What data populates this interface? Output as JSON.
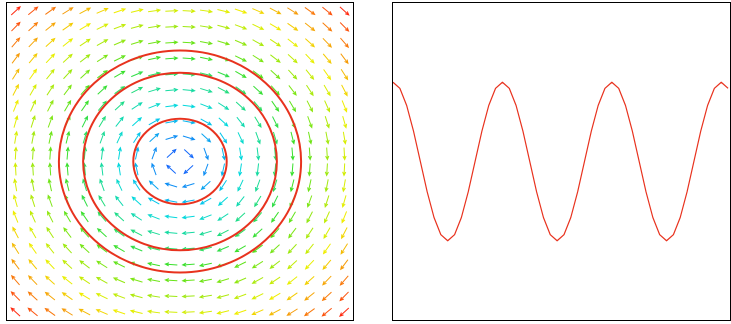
{
  "chart_data": [
    {
      "type": "quiver",
      "xlim": [
        -1,
        1
      ],
      "ylim": [
        -1,
        1
      ],
      "x": [
        -0.95,
        -0.85,
        -0.75,
        -0.65,
        -0.55,
        -0.45,
        -0.35,
        -0.25,
        -0.15,
        -0.05,
        0.05,
        0.15,
        0.25,
        0.35,
        0.45,
        0.55,
        0.65,
        0.75,
        0.85,
        0.95
      ],
      "y": [
        0.95,
        0.85,
        0.75,
        0.65,
        0.55,
        0.45,
        0.35,
        0.25,
        0.15,
        0.05,
        -0.05,
        -0.15,
        -0.25,
        -0.35,
        -0.45,
        -0.55,
        -0.65,
        -0.75,
        -0.85,
        -0.95
      ],
      "u": [
        [
          0.95,
          0.95,
          0.95,
          0.95,
          0.95,
          0.95,
          0.95,
          0.95,
          0.95,
          0.95,
          0.95,
          0.95,
          0.95,
          0.95,
          0.95,
          0.95,
          0.95,
          0.95,
          0.95,
          0.95
        ],
        [
          0.85,
          0.85,
          0.85,
          0.85,
          0.85,
          0.85,
          0.85,
          0.85,
          0.85,
          0.85,
          0.85,
          0.85,
          0.85,
          0.85,
          0.85,
          0.85,
          0.85,
          0.85,
          0.85,
          0.85
        ],
        [
          0.75,
          0.75,
          0.75,
          0.75,
          0.75,
          0.75,
          0.75,
          0.75,
          0.75,
          0.75,
          0.75,
          0.75,
          0.75,
          0.75,
          0.75,
          0.75,
          0.75,
          0.75,
          0.75,
          0.75
        ],
        [
          0.65,
          0.65,
          0.65,
          0.65,
          0.65,
          0.65,
          0.65,
          0.65,
          0.65,
          0.65,
          0.65,
          0.65,
          0.65,
          0.65,
          0.65,
          0.65,
          0.65,
          0.65,
          0.65,
          0.65
        ],
        [
          0.55,
          0.55,
          0.55,
          0.55,
          0.55,
          0.55,
          0.55,
          0.55,
          0.55,
          0.55,
          0.55,
          0.55,
          0.55,
          0.55,
          0.55,
          0.55,
          0.55,
          0.55,
          0.55,
          0.55
        ],
        [
          0.45,
          0.45,
          0.45,
          0.45,
          0.45,
          0.45,
          0.45,
          0.45,
          0.45,
          0.45,
          0.45,
          0.45,
          0.45,
          0.45,
          0.45,
          0.45,
          0.45,
          0.45,
          0.45,
          0.45
        ],
        [
          0.35,
          0.35,
          0.35,
          0.35,
          0.35,
          0.35,
          0.35,
          0.35,
          0.35,
          0.35,
          0.35,
          0.35,
          0.35,
          0.35,
          0.35,
          0.35,
          0.35,
          0.35,
          0.35,
          0.35
        ],
        [
          0.25,
          0.25,
          0.25,
          0.25,
          0.25,
          0.25,
          0.25,
          0.25,
          0.25,
          0.25,
          0.25,
          0.25,
          0.25,
          0.25,
          0.25,
          0.25,
          0.25,
          0.25,
          0.25,
          0.25
        ],
        [
          0.15,
          0.15,
          0.15,
          0.15,
          0.15,
          0.15,
          0.15,
          0.15,
          0.15,
          0.15,
          0.15,
          0.15,
          0.15,
          0.15,
          0.15,
          0.15,
          0.15,
          0.15,
          0.15,
          0.15
        ],
        [
          0.05,
          0.05,
          0.05,
          0.05,
          0.05,
          0.05,
          0.05,
          0.05,
          0.05,
          0.05,
          0.05,
          0.05,
          0.05,
          0.05,
          0.05,
          0.05,
          0.05,
          0.05,
          0.05,
          0.05
        ],
        [
          -0.05,
          -0.05,
          -0.05,
          -0.05,
          -0.05,
          -0.05,
          -0.05,
          -0.05,
          -0.05,
          -0.05,
          -0.05,
          -0.05,
          -0.05,
          -0.05,
          -0.05,
          -0.05,
          -0.05,
          -0.05,
          -0.05,
          -0.05
        ],
        [
          -0.15,
          -0.15,
          -0.15,
          -0.15,
          -0.15,
          -0.15,
          -0.15,
          -0.15,
          -0.15,
          -0.15,
          -0.15,
          -0.15,
          -0.15,
          -0.15,
          -0.15,
          -0.15,
          -0.15,
          -0.15,
          -0.15,
          -0.15
        ],
        [
          -0.25,
          -0.25,
          -0.25,
          -0.25,
          -0.25,
          -0.25,
          -0.25,
          -0.25,
          -0.25,
          -0.25,
          -0.25,
          -0.25,
          -0.25,
          -0.25,
          -0.25,
          -0.25,
          -0.25,
          -0.25,
          -0.25,
          -0.25
        ],
        [
          -0.35,
          -0.35,
          -0.35,
          -0.35,
          -0.35,
          -0.35,
          -0.35,
          -0.35,
          -0.35,
          -0.35,
          -0.35,
          -0.35,
          -0.35,
          -0.35,
          -0.35,
          -0.35,
          -0.35,
          -0.35,
          -0.35,
          -0.35
        ],
        [
          -0.45,
          -0.45,
          -0.45,
          -0.45,
          -0.45,
          -0.45,
          -0.45,
          -0.45,
          -0.45,
          -0.45,
          -0.45,
          -0.45,
          -0.45,
          -0.45,
          -0.45,
          -0.45,
          -0.45,
          -0.45,
          -0.45,
          -0.45
        ],
        [
          -0.55,
          -0.55,
          -0.55,
          -0.55,
          -0.55,
          -0.55,
          -0.55,
          -0.55,
          -0.55,
          -0.55,
          -0.55,
          -0.55,
          -0.55,
          -0.55,
          -0.55,
          -0.55,
          -0.55,
          -0.55,
          -0.55,
          -0.55
        ],
        [
          -0.65,
          -0.65,
          -0.65,
          -0.65,
          -0.65,
          -0.65,
          -0.65,
          -0.65,
          -0.65,
          -0.65,
          -0.65,
          -0.65,
          -0.65,
          -0.65,
          -0.65,
          -0.65,
          -0.65,
          -0.65,
          -0.65,
          -0.65
        ],
        [
          -0.75,
          -0.75,
          -0.75,
          -0.75,
          -0.75,
          -0.75,
          -0.75,
          -0.75,
          -0.75,
          -0.75,
          -0.75,
          -0.75,
          -0.75,
          -0.75,
          -0.75,
          -0.75,
          -0.75,
          -0.75,
          -0.75,
          -0.75
        ],
        [
          -0.85,
          -0.85,
          -0.85,
          -0.85,
          -0.85,
          -0.85,
          -0.85,
          -0.85,
          -0.85,
          -0.85,
          -0.85,
          -0.85,
          -0.85,
          -0.85,
          -0.85,
          -0.85,
          -0.85,
          -0.85,
          -0.85,
          -0.85
        ],
        [
          -0.95,
          -0.95,
          -0.95,
          -0.95,
          -0.95,
          -0.95,
          -0.95,
          -0.95,
          -0.95,
          -0.95,
          -0.95,
          -0.95,
          -0.95,
          -0.95,
          -0.95,
          -0.95,
          -0.95,
          -0.95,
          -0.95,
          -0.95
        ]
      ],
      "v": [
        [
          0.95,
          0.85,
          0.75,
          0.65,
          0.55,
          0.45,
          0.35,
          0.25,
          0.15,
          0.05,
          -0.05,
          -0.15,
          -0.25,
          -0.35,
          -0.45,
          -0.55,
          -0.65,
          -0.75,
          -0.85,
          -0.95
        ],
        [
          0.95,
          0.85,
          0.75,
          0.65,
          0.55,
          0.45,
          0.35,
          0.25,
          0.15,
          0.05,
          -0.05,
          -0.15,
          -0.25,
          -0.35,
          -0.45,
          -0.55,
          -0.65,
          -0.75,
          -0.85,
          -0.95
        ],
        [
          0.95,
          0.85,
          0.75,
          0.65,
          0.55,
          0.45,
          0.35,
          0.25,
          0.15,
          0.05,
          -0.05,
          -0.15,
          -0.25,
          -0.35,
          -0.45,
          -0.55,
          -0.65,
          -0.75,
          -0.85,
          -0.95
        ],
        [
          0.95,
          0.85,
          0.75,
          0.65,
          0.55,
          0.45,
          0.35,
          0.25,
          0.15,
          0.05,
          -0.05,
          -0.15,
          -0.25,
          -0.35,
          -0.45,
          -0.55,
          -0.65,
          -0.75,
          -0.85,
          -0.95
        ],
        [
          0.95,
          0.85,
          0.75,
          0.65,
          0.55,
          0.45,
          0.35,
          0.25,
          0.15,
          0.05,
          -0.05,
          -0.15,
          -0.25,
          -0.35,
          -0.45,
          -0.55,
          -0.65,
          -0.75,
          -0.85,
          -0.95
        ],
        [
          0.95,
          0.85,
          0.75,
          0.65,
          0.55,
          0.45,
          0.35,
          0.25,
          0.15,
          0.05,
          -0.05,
          -0.15,
          -0.25,
          -0.35,
          -0.45,
          -0.55,
          -0.65,
          -0.75,
          -0.85,
          -0.95
        ],
        [
          0.95,
          0.85,
          0.75,
          0.65,
          0.55,
          0.45,
          0.35,
          0.25,
          0.15,
          0.05,
          -0.05,
          -0.15,
          -0.25,
          -0.35,
          -0.45,
          -0.55,
          -0.65,
          -0.75,
          -0.85,
          -0.95
        ],
        [
          0.95,
          0.85,
          0.75,
          0.65,
          0.55,
          0.45,
          0.35,
          0.25,
          0.15,
          0.05,
          -0.05,
          -0.15,
          -0.25,
          -0.35,
          -0.45,
          -0.55,
          -0.65,
          -0.75,
          -0.85,
          -0.95
        ],
        [
          0.95,
          0.85,
          0.75,
          0.65,
          0.55,
          0.45,
          0.35,
          0.25,
          0.15,
          0.05,
          -0.05,
          -0.15,
          -0.25,
          -0.35,
          -0.45,
          -0.55,
          -0.65,
          -0.75,
          -0.85,
          -0.95
        ],
        [
          0.95,
          0.85,
          0.75,
          0.65,
          0.55,
          0.45,
          0.35,
          0.25,
          0.15,
          0.05,
          -0.05,
          -0.15,
          -0.25,
          -0.35,
          -0.45,
          -0.55,
          -0.65,
          -0.75,
          -0.85,
          -0.95
        ],
        [
          0.95,
          0.85,
          0.75,
          0.65,
          0.55,
          0.45,
          0.35,
          0.25,
          0.15,
          0.05,
          -0.05,
          -0.15,
          -0.25,
          -0.35,
          -0.45,
          -0.55,
          -0.65,
          -0.75,
          -0.85,
          -0.95
        ],
        [
          0.95,
          0.85,
          0.75,
          0.65,
          0.55,
          0.45,
          0.35,
          0.25,
          0.15,
          0.05,
          -0.05,
          -0.15,
          -0.25,
          -0.35,
          -0.45,
          -0.55,
          -0.65,
          -0.75,
          -0.85,
          -0.95
        ],
        [
          0.95,
          0.85,
          0.75,
          0.65,
          0.55,
          0.45,
          0.35,
          0.25,
          0.15,
          0.05,
          -0.05,
          -0.15,
          -0.25,
          -0.35,
          -0.45,
          -0.55,
          -0.65,
          -0.75,
          -0.85,
          -0.95
        ],
        [
          0.95,
          0.85,
          0.75,
          0.65,
          0.55,
          0.45,
          0.35,
          0.25,
          0.15,
          0.05,
          -0.05,
          -0.15,
          -0.25,
          -0.35,
          -0.45,
          -0.55,
          -0.65,
          -0.75,
          -0.85,
          -0.95
        ],
        [
          0.95,
          0.85,
          0.75,
          0.65,
          0.55,
          0.45,
          0.35,
          0.25,
          0.15,
          0.05,
          -0.05,
          -0.15,
          -0.25,
          -0.35,
          -0.45,
          -0.55,
          -0.65,
          -0.75,
          -0.85,
          -0.95
        ],
        [
          0.95,
          0.85,
          0.75,
          0.65,
          0.55,
          0.45,
          0.35,
          0.25,
          0.15,
          0.05,
          -0.05,
          -0.15,
          -0.25,
          -0.35,
          -0.45,
          -0.55,
          -0.65,
          -0.75,
          -0.85,
          -0.95
        ],
        [
          0.95,
          0.85,
          0.75,
          0.65,
          0.55,
          0.45,
          0.35,
          0.25,
          0.15,
          0.05,
          -0.05,
          -0.15,
          -0.25,
          -0.35,
          -0.45,
          -0.55,
          -0.65,
          -0.75,
          -0.85,
          -0.95
        ],
        [
          0.95,
          0.85,
          0.75,
          0.65,
          0.55,
          0.45,
          0.35,
          0.25,
          0.15,
          0.05,
          -0.05,
          -0.15,
          -0.25,
          -0.35,
          -0.45,
          -0.55,
          -0.65,
          -0.75,
          -0.85,
          -0.95
        ],
        [
          0.95,
          0.85,
          0.75,
          0.65,
          0.55,
          0.45,
          0.35,
          0.25,
          0.15,
          0.05,
          -0.05,
          -0.15,
          -0.25,
          -0.35,
          -0.45,
          -0.55,
          -0.65,
          -0.75,
          -0.85,
          -0.95
        ],
        [
          0.95,
          0.85,
          0.75,
          0.65,
          0.55,
          0.45,
          0.35,
          0.25,
          0.15,
          0.05,
          -0.05,
          -0.15,
          -0.25,
          -0.35,
          -0.45,
          -0.55,
          -0.65,
          -0.75,
          -0.85,
          -0.95
        ]
      ],
      "colormap": [
        "#1a4cff",
        "#00d8e8",
        "#3ee020",
        "#f0f000",
        "#ff2a10"
      ],
      "contour_levels": [
        0.27,
        0.56,
        0.7
      ],
      "contour_color": "#e8321e"
    },
    {
      "type": "line",
      "xlim": [
        0,
        3.08
      ],
      "ylim": [
        -2,
        2
      ],
      "x": [
        0,
        0.0625,
        0.125,
        0.1875,
        0.25,
        0.3125,
        0.375,
        0.4375,
        0.5,
        0.5625,
        0.625,
        0.6875,
        0.75,
        0.8125,
        0.875,
        0.9375,
        1,
        1.0625,
        1.125,
        1.1875,
        1.25,
        1.3125,
        1.375,
        1.4375,
        1.5,
        1.5625,
        1.625,
        1.6875,
        1.75,
        1.8125,
        1.875,
        1.9375,
        2,
        2.0625,
        2.125,
        2.1875,
        2.25,
        2.3125,
        2.375,
        2.4375,
        2.5,
        2.5625,
        2.625,
        2.6875,
        2.75,
        2.8125,
        2.875,
        2.9375,
        3,
        3.0625
      ],
      "values": [
        1,
        0.924,
        0.707,
        0.383,
        0,
        -0.383,
        -0.707,
        -0.924,
        -1,
        -0.924,
        -0.707,
        -0.383,
        0,
        0.383,
        0.707,
        0.924,
        1,
        0.924,
        0.707,
        0.383,
        0,
        -0.383,
        -0.707,
        -0.924,
        -1,
        -0.924,
        -0.707,
        -0.383,
        0,
        0.383,
        0.707,
        0.924,
        1,
        0.924,
        0.707,
        0.383,
        0,
        -0.383,
        -0.707,
        -0.924,
        -1,
        -0.924,
        -0.707,
        -0.383,
        0,
        0.383,
        0.707,
        0.924,
        1,
        0.924
      ],
      "color": "#e8321e"
    }
  ]
}
